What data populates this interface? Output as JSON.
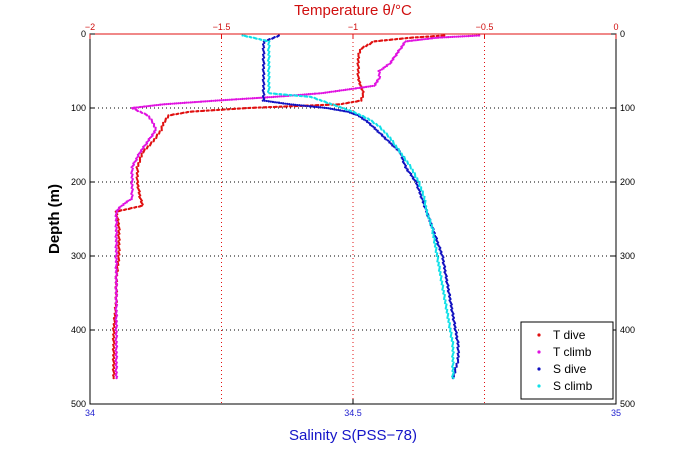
{
  "chart_data": {
    "type": "scatter",
    "xlabel_bottom": "Salinity S(PSS−78)",
    "xlabel_top": "Temperature θ/°C",
    "ylabel": "Depth (m)",
    "xlim_bottom": [
      34,
      35
    ],
    "xlim_top": [
      -2,
      0
    ],
    "ylim": [
      0,
      500
    ],
    "y_reversed": true,
    "xticks_bottom": [
      {
        "v": 34,
        "label": "34"
      },
      {
        "v": 34.5,
        "label": "34.5"
      },
      {
        "v": 35,
        "label": "35"
      }
    ],
    "xticks_top": [
      {
        "v": -2,
        "label": "−2"
      },
      {
        "v": -1.5,
        "label": "−1.5"
      },
      {
        "v": -1,
        "label": "−1"
      },
      {
        "v": -0.5,
        "label": "−0.5"
      },
      {
        "v": 0,
        "label": "0"
      }
    ],
    "yticks": [
      {
        "v": 0,
        "label": "0"
      },
      {
        "v": 100,
        "label": "100"
      },
      {
        "v": 200,
        "label": "200"
      },
      {
        "v": 300,
        "label": "300"
      },
      {
        "v": 400,
        "label": "400"
      },
      {
        "v": 500,
        "label": "500"
      }
    ],
    "grid": true,
    "legend_position": "bottom-right",
    "series": [
      {
        "name": "T dive",
        "axis": "top",
        "color": "#e01010",
        "depth": [
          2,
          5,
          10,
          20,
          30,
          40,
          60,
          80,
          90,
          95,
          100,
          105,
          110,
          120,
          130,
          145,
          160,
          180,
          200,
          220,
          232,
          240,
          260,
          280,
          300,
          330,
          360,
          400,
          430,
          465
        ],
        "temp": [
          -0.65,
          -0.78,
          -0.92,
          -0.97,
          -0.98,
          -0.98,
          -0.98,
          -0.96,
          -0.97,
          -1.05,
          -1.4,
          -1.62,
          -1.7,
          -1.72,
          -1.73,
          -1.76,
          -1.8,
          -1.82,
          -1.82,
          -1.81,
          -1.8,
          -1.9,
          -1.89,
          -1.89,
          -1.89,
          -1.9,
          -1.9,
          -1.91,
          -1.91,
          -1.91
        ]
      },
      {
        "name": "T climb",
        "axis": "top",
        "color": "#e010e0",
        "depth": [
          465,
          440,
          400,
          360,
          330,
          300,
          280,
          260,
          240,
          232,
          222,
          200,
          180,
          160,
          145,
          130,
          120,
          110,
          100,
          95,
          90,
          85,
          80,
          75,
          70,
          60,
          50,
          40,
          30,
          20,
          10,
          5,
          2
        ],
        "temp": [
          -1.9,
          -1.9,
          -1.9,
          -1.9,
          -1.9,
          -1.9,
          -1.9,
          -1.9,
          -1.9,
          -1.88,
          -1.84,
          -1.84,
          -1.84,
          -1.81,
          -1.78,
          -1.75,
          -1.76,
          -1.78,
          -1.84,
          -1.72,
          -1.52,
          -1.3,
          -1.12,
          -1.02,
          -0.92,
          -0.9,
          -0.9,
          -0.86,
          -0.84,
          -0.82,
          -0.8,
          -0.68,
          -0.52
        ]
      },
      {
        "name": "S dive",
        "axis": "bottom",
        "color": "#1010c0",
        "depth": [
          2,
          5,
          10,
          20,
          40,
          60,
          80,
          90,
          95,
          100,
          105,
          110,
          120,
          140,
          160,
          180,
          200,
          220,
          240,
          260,
          280,
          300,
          320,
          340,
          360,
          380,
          400,
          420,
          440,
          465
        ],
        "sal": [
          34.36,
          34.35,
          34.33,
          34.33,
          34.33,
          34.33,
          34.33,
          34.33,
          34.38,
          34.45,
          34.49,
          34.51,
          34.53,
          34.56,
          34.59,
          34.6,
          34.62,
          34.63,
          34.64,
          34.65,
          34.66,
          34.67,
          34.675,
          34.68,
          34.685,
          34.69,
          34.695,
          34.7,
          34.7,
          34.69
        ]
      },
      {
        "name": "S climb",
        "axis": "bottom",
        "color": "#10e0e8",
        "depth": [
          465,
          440,
          420,
          400,
          380,
          360,
          340,
          320,
          300,
          280,
          260,
          240,
          220,
          200,
          180,
          160,
          140,
          125,
          115,
          105,
          95,
          85,
          80,
          70,
          60,
          40,
          30,
          20,
          10,
          5,
          2
        ],
        "sal": [
          34.69,
          34.69,
          34.69,
          34.685,
          34.68,
          34.675,
          34.67,
          34.665,
          34.66,
          34.655,
          34.65,
          34.64,
          34.635,
          34.625,
          34.61,
          34.59,
          34.57,
          34.55,
          34.53,
          34.5,
          34.46,
          34.42,
          34.34,
          34.34,
          34.34,
          34.34,
          34.34,
          34.34,
          34.34,
          34.31,
          34.29
        ]
      }
    ]
  }
}
